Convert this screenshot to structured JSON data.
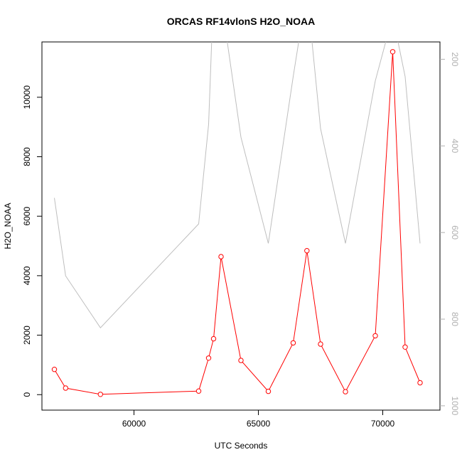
{
  "chart_data": {
    "type": "line",
    "title": "ORCAS RF14vlonS H2O_NOAA",
    "xlabel": "UTC Seconds",
    "ylabel": "H2O_NOAA",
    "xlim": [
      56300,
      72300
    ],
    "ylim": [
      -520,
      11860
    ],
    "xticks": [
      60000,
      65000,
      70000
    ],
    "yticks": [
      0,
      2000,
      4000,
      6000,
      8000,
      10000
    ],
    "grid": false,
    "series": [
      {
        "role": "primary",
        "color": "#ff0000",
        "marker": "open-circle",
        "x": [
          56800,
          57250,
          58650,
          62600,
          63000,
          63200,
          63500,
          64300,
          65400,
          66400,
          66950,
          67500,
          68500,
          69700,
          70400,
          70900,
          71500
        ],
        "y": [
          850,
          220,
          10,
          120,
          1230,
          1880,
          4640,
          1150,
          110,
          1740,
          4840,
          1700,
          100,
          1980,
          11530,
          1600,
          400
        ]
      },
      {
        "role": "secondary",
        "color": "#bebebe",
        "marker": "none",
        "axis": "right",
        "x": [
          56800,
          57250,
          58650,
          62600,
          63000,
          63200,
          63500,
          64300,
          65400,
          66400,
          66950,
          67500,
          68500,
          69700,
          70400,
          70900,
          71500
        ],
        "y": [
          520,
          700,
          820,
          580,
          350,
          40,
          60,
          380,
          625,
          240,
          40,
          360,
          625,
          250,
          100,
          240,
          625
        ]
      }
    ],
    "right_axis": {
      "ylim": [
        1010,
        160
      ],
      "yticks": [
        200,
        400,
        600,
        800,
        1000
      ]
    }
  }
}
